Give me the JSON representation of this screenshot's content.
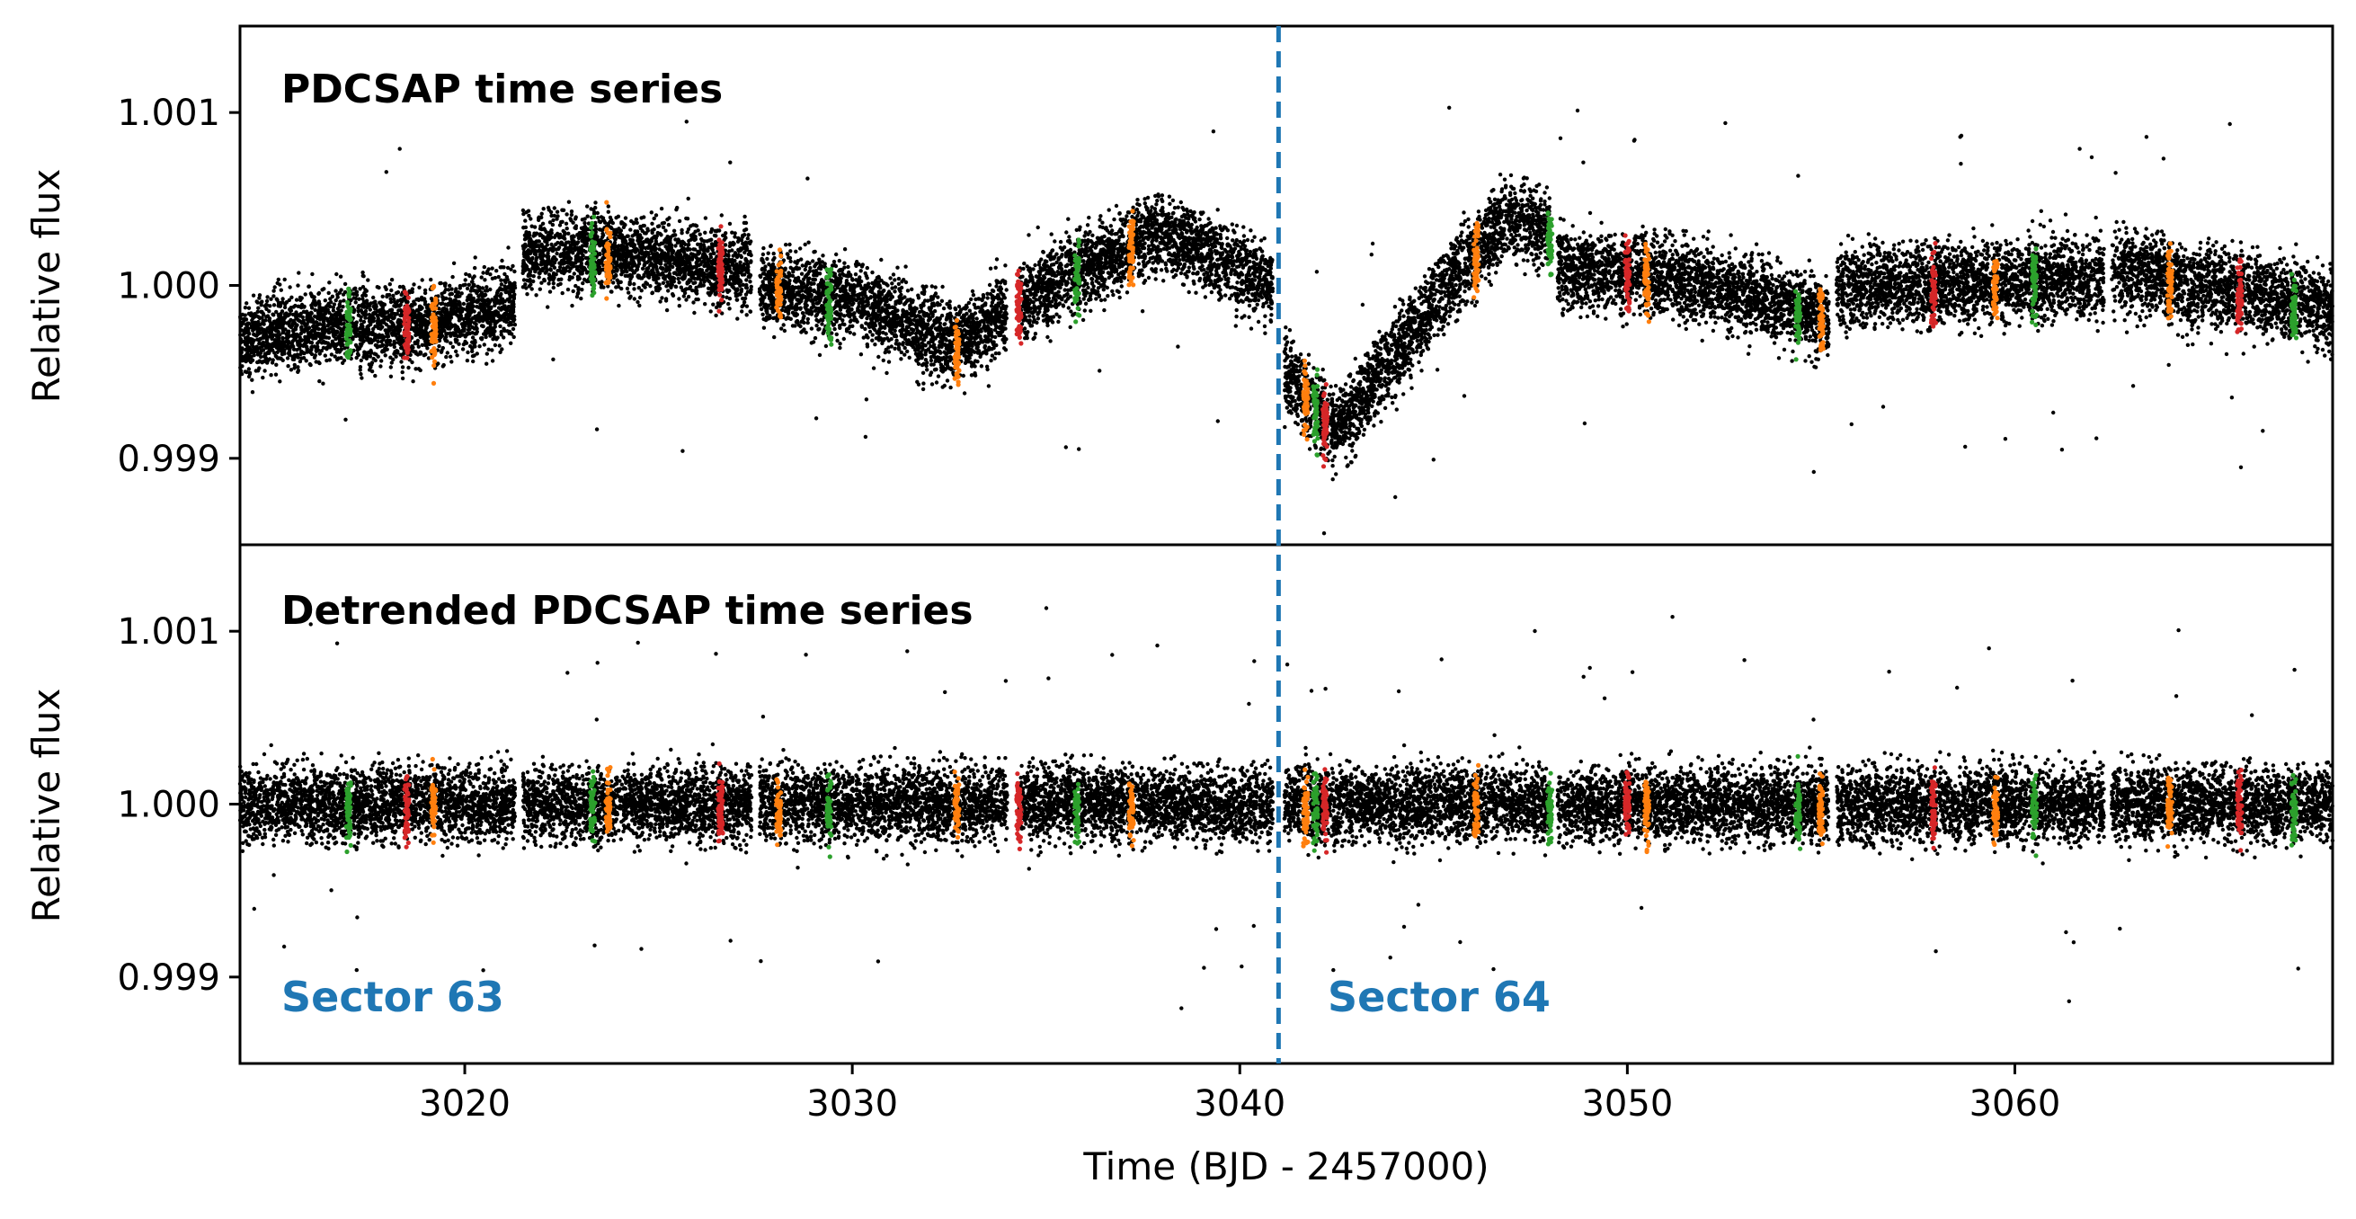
{
  "chart_data": {
    "type": "scatter",
    "xlabel": "Time (BJD - 2457000)",
    "xlim": [
      3014.2,
      3068.2
    ],
    "xticks": [
      3020,
      3030,
      3040,
      3050,
      3060
    ],
    "colors": {
      "base": "#000000",
      "transit_orange": "#ff7f0e",
      "transit_green": "#2ca02c",
      "transit_red": "#d62728",
      "sector_line": "#1f77b4",
      "sector_text": "#1f77b4"
    },
    "sector_boundary_x": 3041.0,
    "sector_labels": [
      {
        "text": "Sector 63",
        "panel": "bottom",
        "placement": "lower-left"
      },
      {
        "text": "Sector 64",
        "panel": "bottom",
        "placement": "lower-center"
      }
    ],
    "data_segments": [
      [
        3014.2,
        3021.3
      ],
      [
        3021.5,
        3027.4
      ],
      [
        3027.6,
        3034.0
      ],
      [
        3034.3,
        3040.85
      ],
      [
        3041.15,
        3048.0
      ],
      [
        3048.2,
        3055.2
      ],
      [
        3055.4,
        3062.3
      ],
      [
        3062.5,
        3068.2
      ]
    ],
    "transits": [
      {
        "x": 3017.0,
        "color": "green"
      },
      {
        "x": 3018.5,
        "color": "red"
      },
      {
        "x": 3019.2,
        "color": "orange"
      },
      {
        "x": 3023.3,
        "color": "green"
      },
      {
        "x": 3023.7,
        "color": "orange"
      },
      {
        "x": 3026.6,
        "color": "red"
      },
      {
        "x": 3028.1,
        "color": "orange"
      },
      {
        "x": 3029.4,
        "color": "green"
      },
      {
        "x": 3032.7,
        "color": "orange"
      },
      {
        "x": 3034.3,
        "color": "red"
      },
      {
        "x": 3035.8,
        "color": "green"
      },
      {
        "x": 3037.2,
        "color": "orange"
      },
      {
        "x": 3041.7,
        "color": "orange"
      },
      {
        "x": 3041.95,
        "color": "green"
      },
      {
        "x": 3042.2,
        "color": "red"
      },
      {
        "x": 3046.1,
        "color": "orange"
      },
      {
        "x": 3048.0,
        "color": "green"
      },
      {
        "x": 3050.0,
        "color": "red"
      },
      {
        "x": 3050.5,
        "color": "orange"
      },
      {
        "x": 3054.4,
        "color": "green"
      },
      {
        "x": 3055.0,
        "color": "orange"
      },
      {
        "x": 3057.9,
        "color": "red"
      },
      {
        "x": 3059.5,
        "color": "orange"
      },
      {
        "x": 3060.5,
        "color": "green"
      },
      {
        "x": 3064.0,
        "color": "orange"
      },
      {
        "x": 3065.8,
        "color": "red"
      },
      {
        "x": 3067.2,
        "color": "green"
      }
    ],
    "panels": [
      {
        "name": "top",
        "title": "PDCSAP time series",
        "ylabel": "Relative flux",
        "ylim": [
          0.9985,
          1.0015
        ],
        "yticks": [
          0.999,
          1.0,
          1.001
        ],
        "ytick_labels": [
          "0.999",
          "1.000",
          "1.001"
        ],
        "scatter_sigma": 0.00018,
        "trend": [
          [
            3014.2,
            0.9997
          ],
          [
            3016,
            0.99975
          ],
          [
            3019,
            0.99978
          ],
          [
            3021.3,
            0.9999
          ],
          [
            3021.5,
            1.0002
          ],
          [
            3024,
            1.00018
          ],
          [
            3027.4,
            1.0001
          ],
          [
            3027.6,
            1.0
          ],
          [
            3030,
            0.99992
          ],
          [
            3032.7,
            0.99965
          ],
          [
            3034.0,
            0.99985
          ],
          [
            3034.3,
            0.9999
          ],
          [
            3036,
            1.0001
          ],
          [
            3038,
            1.0003
          ],
          [
            3040.85,
            1.0
          ],
          [
            3041.15,
            0.9995
          ],
          [
            3042.5,
            0.99915
          ],
          [
            3044,
            0.9996
          ],
          [
            3045.5,
            1.00005
          ],
          [
            3047,
            1.0004
          ],
          [
            3048.0,
            1.0003
          ],
          [
            3048.2,
            1.0001
          ],
          [
            3051,
            1.00005
          ],
          [
            3053,
            0.99995
          ],
          [
            3055.2,
            0.9998
          ],
          [
            3055.4,
            1.0
          ],
          [
            3058,
            1.0
          ],
          [
            3062.3,
            1.00005
          ],
          [
            3062.5,
            1.0001
          ],
          [
            3065,
            1.0
          ],
          [
            3068.2,
            0.99985
          ]
        ]
      },
      {
        "name": "bottom",
        "title": "Detrended PDCSAP time series",
        "ylabel": "Relative flux",
        "ylim": [
          0.9985,
          1.0015
        ],
        "yticks": [
          0.999,
          1.0,
          1.001
        ],
        "ytick_labels": [
          "0.999",
          "1.000",
          "1.001"
        ],
        "scatter_sigma": 0.00017,
        "trend": [
          [
            3014.2,
            1.0
          ],
          [
            3068.2,
            1.0
          ]
        ]
      }
    ]
  }
}
